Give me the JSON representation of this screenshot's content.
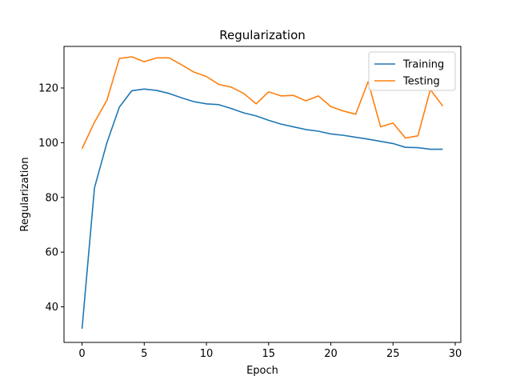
{
  "chart_data": {
    "type": "line",
    "title": "Regularization",
    "xlabel": "Epoch",
    "ylabel": "Regularization",
    "xlim": [
      -1.45,
      30.45
    ],
    "ylim": [
      27,
      135.2
    ],
    "xticks": [
      0,
      5,
      10,
      15,
      20,
      25,
      30
    ],
    "yticks": [
      40,
      60,
      80,
      100,
      120
    ],
    "grid": false,
    "legend_position": "top-right",
    "x": [
      0,
      1,
      2,
      3,
      4,
      5,
      6,
      7,
      8,
      9,
      10,
      11,
      12,
      13,
      14,
      15,
      16,
      17,
      18,
      19,
      20,
      21,
      22,
      23,
      24,
      25,
      26,
      27,
      28,
      29
    ],
    "series": [
      {
        "name": "Training",
        "color": "#1f77b4",
        "values": [
          32,
          83.5,
          100,
          113,
          119,
          119.6,
          119.1,
          118,
          116.4,
          115,
          114.2,
          113.9,
          112.5,
          110.9,
          109.8,
          108.2,
          106.8,
          105.8,
          104.8,
          104.2,
          103.2,
          102.7,
          102,
          101.3,
          100.5,
          99.7,
          98.3,
          98.2,
          97.6,
          97.6
        ]
      },
      {
        "name": "Testing",
        "color": "#ff7f0e",
        "values": [
          97.8,
          107.5,
          115.5,
          130.8,
          131.4,
          129.6,
          131,
          131,
          128.5,
          125.8,
          124.2,
          121.3,
          120.3,
          118,
          114.2,
          118.6,
          117.1,
          117.3,
          115.3,
          117.1,
          113.2,
          111.6,
          110.4,
          122.3,
          105.8,
          107.2,
          101.7,
          102.5,
          119.4,
          113.4
        ]
      }
    ]
  }
}
